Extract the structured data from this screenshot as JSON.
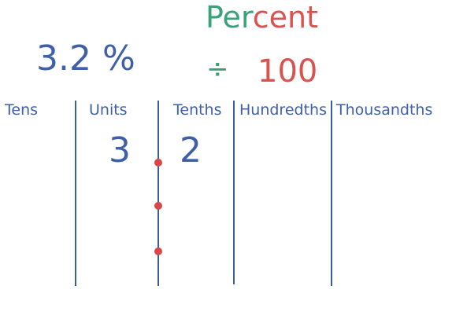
{
  "title": {
    "part_green": "Per",
    "part_red": "cent"
  },
  "percent_value": "3.2 %",
  "operation": {
    "symbol": "÷",
    "divisor": "100"
  },
  "place_value_headers": [
    "Tens",
    "Units",
    "Tenths",
    "Hundredths",
    "Thousandths"
  ],
  "digits": {
    "units": "3",
    "tenths": "2"
  },
  "colors": {
    "green": "#3aa27b",
    "red": "#d9534f",
    "blue": "#3f5fa8",
    "line": "#3a5e95",
    "dot": "#d9464a"
  }
}
